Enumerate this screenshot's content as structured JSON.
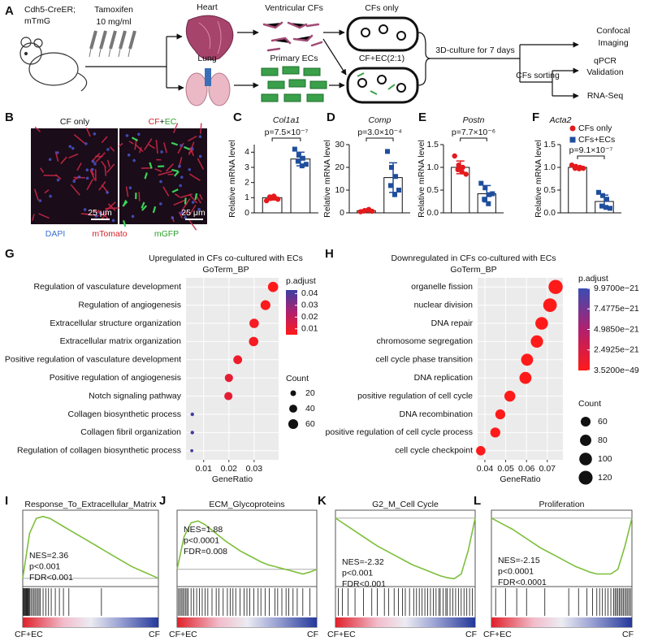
{
  "panels": {
    "A": {
      "label": "A",
      "mouse": [
        "Cdh5-CreER;",
        "mTmG"
      ],
      "tamoxifen": [
        "Tamoxifen",
        "10 mg/ml"
      ],
      "heart": "Heart",
      "lung": "Lung",
      "ventricular_cfs": "Ventricular CFs",
      "primary_ecs": "Primary ECs",
      "cfs_only": "CFs only",
      "cf_ec": "CF+EC(2:1)",
      "culture": "3D-culture for 7 days",
      "sorting": "CFs sorting",
      "confocal": [
        "Confocal",
        "Imaging"
      ],
      "qpcr": [
        "qPCR",
        "Validation"
      ],
      "rnaseq": "RNA-Seq"
    },
    "B": {
      "label": "B",
      "left_title": "CF only",
      "right_title": [
        "CF",
        "+",
        "EC"
      ],
      "scale_bar": [
        "25 μm",
        "25 μm"
      ],
      "channels": [
        "DAPI",
        "mTomato",
        "mGFP"
      ]
    }
  },
  "chart_data": [
    {
      "type": "bar",
      "panel": "C",
      "title": "Col1a1",
      "ylabel": "Relative mRNA level",
      "annotation": "p=7.5×10⁻⁷",
      "ylim": [
        0,
        4.5
      ],
      "yticks": [
        0,
        1,
        2,
        3,
        4
      ],
      "series": [
        {
          "color": "#e41a1c",
          "marker": "circle",
          "values": [
            1.0
          ],
          "errors": [
            0.15
          ],
          "points": [
            0.8,
            0.95,
            1.0,
            1.05,
            1.1,
            0.9
          ]
        },
        {
          "color": "#1f4e9c",
          "marker": "square",
          "values": [
            3.55
          ],
          "errors": [
            0.45
          ],
          "points": [
            4.2,
            3.8,
            3.6,
            3.4,
            3.1,
            3.2
          ]
        }
      ]
    },
    {
      "type": "bar",
      "panel": "D",
      "title": "Comp",
      "ylabel": "Relative mRNA level",
      "annotation": "p=3.0×10⁻⁴",
      "ylim": [
        0,
        30
      ],
      "yticks": [
        0,
        10,
        20,
        30
      ],
      "series": [
        {
          "color": "#e41a1c",
          "marker": "circle",
          "values": [
            0.95
          ],
          "errors": [
            0.4
          ],
          "points": [
            0.5,
            1.0,
            1.5,
            0.8,
            1.2,
            0.7
          ]
        },
        {
          "color": "#1f4e9c",
          "marker": "square",
          "values": [
            15.5
          ],
          "errors": [
            6.5
          ],
          "points": [
            27,
            20,
            16,
            12,
            8,
            10
          ]
        }
      ]
    },
    {
      "type": "bar",
      "panel": "E",
      "title": "Postn",
      "ylabel": "Relative mRNA level",
      "annotation": "p=7.7×10⁻⁶",
      "ylim": [
        0,
        1.5
      ],
      "yticks": [
        {
          "value": 0,
          "label": "0.0"
        },
        0.5,
        {
          "value": 1,
          "label": "1.0"
        },
        1.5
      ],
      "series": [
        {
          "color": "#e41a1c",
          "marker": "circle",
          "values": [
            1.0
          ],
          "errors": [
            0.14
          ],
          "points": [
            1.25,
            1.05,
            1.0,
            0.95,
            0.9,
            0.85
          ]
        },
        {
          "color": "#1f4e9c",
          "marker": "square",
          "values": [
            0.42
          ],
          "errors": [
            0.18
          ],
          "points": [
            0.65,
            0.55,
            0.4,
            0.3,
            0.2,
            0.42
          ]
        }
      ]
    },
    {
      "type": "bar",
      "panel": "F",
      "title": "Acta2",
      "ylabel": "Relative mRNA level",
      "annotation": "p=9.1×10⁻⁷",
      "legend": "top-right",
      "ylim": [
        0,
        1.5
      ],
      "yticks": [
        {
          "value": 0,
          "label": "0.0"
        },
        0.5,
        {
          "value": 1,
          "label": "1.0"
        },
        1.5
      ],
      "series": [
        {
          "name": "CFs only",
          "color": "#e41a1c",
          "marker": "circle",
          "values": [
            1.0
          ],
          "errors": [
            0.03
          ],
          "points": [
            1.05,
            1.02,
            1.0,
            0.98,
            0.97,
            0.98
          ]
        },
        {
          "name": "CFs+ECs",
          "color": "#1f4e9c",
          "marker": "square",
          "values": [
            0.25
          ],
          "errors": [
            0.14
          ],
          "points": [
            0.45,
            0.38,
            0.3,
            0.15,
            0.12,
            0.1
          ]
        }
      ]
    },
    {
      "type": "dot",
      "panel": "G",
      "title": "Upregulated in CFs co-cultured with ECs",
      "subtitle": "GoTerm_BP",
      "xlabel": "GeneRatio",
      "categories": [
        "Regulation of vasculature development",
        "Regulation of angiogenesis",
        "Extracellular structure organization",
        "Extracellular matrix organization",
        "Positive regulation of vasculature development",
        "Positive regulation of angiogenesis",
        "Notch signaling pathway",
        "Collagen biosynthetic process",
        "Collagen fibril organization",
        "Regulation of collagen biosynthetic process"
      ],
      "values": [
        0.0375,
        0.0345,
        0.03,
        0.0298,
        0.0235,
        0.02,
        0.0198,
        0.0055,
        0.0055,
        0.0053
      ],
      "sizes": [
        65,
        60,
        55,
        55,
        48,
        42,
        42,
        8,
        8,
        6
      ],
      "p_adjust": [
        0.005,
        0.006,
        0.007,
        0.007,
        0.009,
        0.011,
        0.011,
        0.042,
        0.042,
        0.042
      ],
      "xlim": [
        0.003,
        0.0397
      ],
      "xticks": [
        0.01,
        0.02,
        0.03
      ],
      "grid": true,
      "color_legend": {
        "title": "p.adjust",
        "lim": [
          0.005,
          0.043
        ],
        "ticks": [
          0.04,
          0.03,
          0.02,
          0.01
        ],
        "colors": [
          "#ff1a1a",
          "#b0206e",
          "#3b3fa3"
        ]
      },
      "size_legend": {
        "title": "Count",
        "ticks": [
          20,
          40,
          60
        ]
      }
    },
    {
      "type": "dot",
      "panel": "H",
      "title": "Downregulated in CFs co-cultured with ECs",
      "subtitle": "GoTerm_BP",
      "xlabel": "GeneRatio",
      "categories": [
        "organelle fission",
        "nuclear division",
        "DNA repair",
        "chromosome segregation",
        "cell cycle phase transition",
        "DNA replication",
        "positive regulation of cell cycle",
        "DNA recombination",
        "positive regulation of cell cycle process",
        "cell cycle checkpoint"
      ],
      "values": [
        0.074,
        0.0713,
        0.0673,
        0.065,
        0.0603,
        0.0595,
        0.052,
        0.0474,
        0.045,
        0.038
      ],
      "sizes": [
        125,
        115,
        100,
        95,
        90,
        90,
        75,
        62,
        62,
        55
      ],
      "p_adjust": [
        3.52e-49,
        1e-45,
        1e-40,
        1e-35,
        1e-33,
        1e-30,
        1e-28,
        1e-25,
        1e-24,
        1e-22
      ],
      "xlim": [
        0.0365,
        0.0775
      ],
      "xticks": [
        0.04,
        0.05,
        0.06,
        0.07
      ],
      "grid": true,
      "color_legend": {
        "title": "p.adjust",
        "lim": [
          3.52e-49,
          9.97e-21
        ],
        "ticks": [
          {
            "value": 9.97e-21,
            "label": "9.9700e−21"
          },
          {
            "value": 7.4775e-21,
            "label": "7.4775e−21"
          },
          {
            "value": 4.985e-21,
            "label": "4.9850e−21"
          },
          {
            "value": 2.4925e-21,
            "label": "2.4925e−21"
          },
          {
            "value": 3.52e-49,
            "label": "3.5200e−49"
          }
        ],
        "colors": [
          "#ff1a1a",
          "#b0206e",
          "#3b4cb3"
        ]
      },
      "size_legend": {
        "title": "Count",
        "ticks": [
          60,
          80,
          100,
          120
        ]
      }
    },
    {
      "type": "gsea",
      "panel": "I",
      "title": "Response_To_Extracellular_Matrix",
      "stats": [
        "NES=2.36",
        "p<0.001",
        "FDR<0.001"
      ],
      "left_label": "CF+EC",
      "right_label": "CF",
      "color": "#7dbf3a",
      "ylim": [
        -0.05,
        0.65
      ],
      "values": [
        0,
        0.45,
        0.6,
        0.62,
        0.6,
        0.56,
        0.52,
        0.48,
        0.44,
        0.4,
        0.36,
        0.32,
        0.28,
        0.24,
        0.2,
        0.16,
        0.12,
        0.09,
        0.06,
        0.03,
        0
      ],
      "hits": [
        0.005,
        0.01,
        0.015,
        0.02,
        0.025,
        0.03,
        0.035,
        0.04,
        0.045,
        0.05,
        0.06,
        0.07,
        0.08,
        0.09,
        0.1,
        0.11,
        0.12,
        0.13,
        0.15,
        0.17,
        0.19,
        0.21,
        0.24,
        0.27,
        0.3,
        0.34,
        0.58
      ]
    },
    {
      "type": "gsea",
      "panel": "J",
      "title": "ECM_Glycoproteins",
      "stats": [
        "NES=1.88",
        "p<0.0001",
        "FDR=0.008"
      ],
      "left_label": "CF+EC",
      "right_label": "CF",
      "color": "#7dbf3a",
      "ylim": [
        -0.15,
        0.6
      ],
      "values": [
        0,
        0.35,
        0.5,
        0.52,
        0.48,
        0.42,
        0.36,
        0.3,
        0.25,
        0.2,
        0.16,
        0.12,
        0.08,
        0.05,
        0.03,
        0.01,
        -0.01,
        -0.03,
        -0.05,
        -0.03,
        0
      ],
      "hits": [
        0.01,
        0.02,
        0.03,
        0.04,
        0.05,
        0.06,
        0.07,
        0.08,
        0.1,
        0.12,
        0.14,
        0.16,
        0.18,
        0.2,
        0.22,
        0.25,
        0.28,
        0.3,
        0.33,
        0.36,
        0.38,
        0.4,
        0.42,
        0.45,
        0.48,
        0.5,
        0.52,
        0.55,
        0.58,
        0.6,
        0.63,
        0.66,
        0.7,
        0.72,
        0.75,
        0.78,
        0.8,
        0.83,
        0.86,
        0.9,
        0.95
      ]
    },
    {
      "type": "gsea",
      "panel": "K",
      "title": "G2_M_Cell Cycle",
      "stats": [
        "NES=-2.32",
        "p<0.001",
        "FDR<0.001"
      ],
      "left_label": "CF+EC",
      "right_label": "CF",
      "color": "#7dbf3a",
      "ylim": [
        -0.7,
        0.05
      ],
      "values": [
        0,
        -0.05,
        -0.1,
        -0.15,
        -0.2,
        -0.25,
        -0.3,
        -0.34,
        -0.38,
        -0.42,
        -0.46,
        -0.5,
        -0.53,
        -0.56,
        -0.59,
        -0.62,
        -0.64,
        -0.65,
        -0.6,
        -0.35,
        0
      ],
      "hits": [
        0.02,
        0.05,
        0.09,
        0.14,
        0.2,
        0.26,
        0.3,
        0.35,
        0.38,
        0.42,
        0.45,
        0.48,
        0.5,
        0.53,
        0.56,
        0.58,
        0.6,
        0.62,
        0.64,
        0.66,
        0.68,
        0.7,
        0.72,
        0.74,
        0.75,
        0.77,
        0.79,
        0.8,
        0.82,
        0.84,
        0.86,
        0.88,
        0.9,
        0.92,
        0.94,
        0.96,
        0.98
      ]
    },
    {
      "type": "gsea",
      "panel": "L",
      "title": "Proliferation",
      "stats": [
        "NES=-2.15",
        "p<0.0001",
        "FDR<0.0001"
      ],
      "left_label": "CF+EC",
      "right_label": "CF",
      "color": "#7dbf3a",
      "ylim": [
        -0.7,
        0.05
      ],
      "values": [
        0,
        -0.04,
        -0.08,
        -0.12,
        -0.17,
        -0.22,
        -0.27,
        -0.32,
        -0.36,
        -0.4,
        -0.44,
        -0.48,
        -0.52,
        -0.55,
        -0.58,
        -0.6,
        -0.6,
        -0.6,
        -0.55,
        -0.3,
        0
      ],
      "hits": [
        0.03,
        0.1,
        0.18,
        0.25,
        0.38,
        0.55,
        0.62,
        0.68,
        0.72,
        0.75,
        0.77,
        0.79,
        0.81,
        0.83,
        0.85,
        0.87,
        0.88,
        0.89,
        0.9,
        0.91,
        0.92,
        0.93,
        0.94,
        0.95,
        0.96,
        0.97,
        0.98,
        0.99
      ]
    }
  ]
}
